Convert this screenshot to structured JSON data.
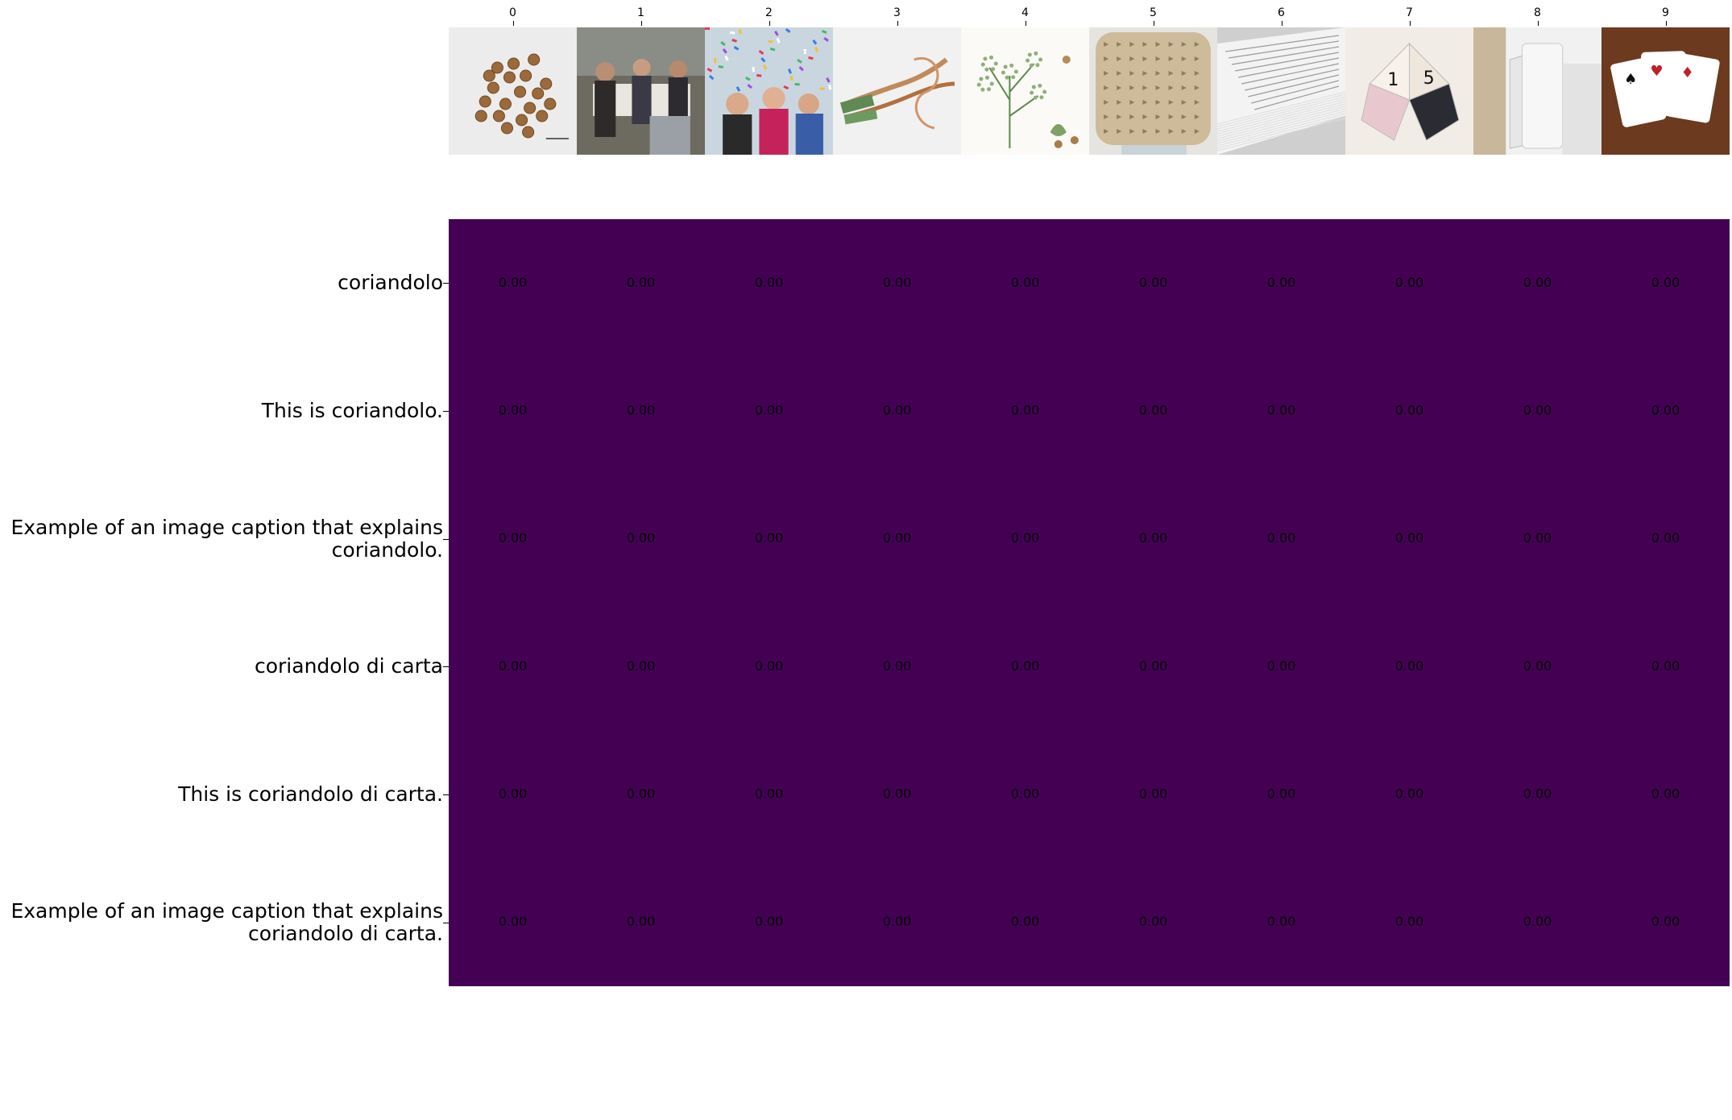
{
  "chart_data": {
    "type": "heatmap",
    "columns": [
      "0",
      "1",
      "2",
      "3",
      "4",
      "5",
      "6",
      "7",
      "8",
      "9"
    ],
    "column_images": [
      "coriander-seeds-photo-icon",
      "painting-women-with-paper-icon",
      "confetti-crowd-photo-icon",
      "white-roots-photo-icon",
      "coriander-plant-botanical-illustration-icon",
      "cuneiform-tablet-photo-icon",
      "paper-stack-photo-icon",
      "paper-fortune-teller-icon",
      "paper-roll-photo-icon",
      "playing-cards-photo-icon"
    ],
    "rows": [
      "coriandolo",
      "This is coriandolo.",
      "Example of an image caption that explains\ncoriandolo.",
      "coriandolo di carta",
      "This is coriandolo di carta.",
      "Example of an image caption that explains\ncoriandolo di carta."
    ],
    "values": [
      [
        0,
        0,
        0,
        0,
        0,
        0,
        0,
        0,
        0,
        0
      ],
      [
        0,
        0,
        0,
        0,
        0,
        0,
        0,
        0,
        0,
        0
      ],
      [
        0,
        0,
        0,
        0,
        0,
        0,
        0,
        0,
        0,
        0
      ],
      [
        0,
        0,
        0,
        0,
        0,
        0,
        0,
        0,
        0,
        0
      ],
      [
        0,
        0,
        0,
        0,
        0,
        0,
        0,
        0,
        0,
        0
      ],
      [
        0,
        0,
        0,
        0,
        0,
        0,
        0,
        0,
        0,
        0
      ]
    ],
    "cell_labels": [
      [
        "0.00",
        "0.00",
        "0.00",
        "0.00",
        "0.00",
        "0.00",
        "0.00",
        "0.00",
        "0.00",
        "0.00"
      ],
      [
        "0.00",
        "0.00",
        "0.00",
        "0.00",
        "0.00",
        "0.00",
        "0.00",
        "0.00",
        "0.00",
        "0.00"
      ],
      [
        "0.00",
        "0.00",
        "0.00",
        "0.00",
        "0.00",
        "0.00",
        "0.00",
        "0.00",
        "0.00",
        "0.00"
      ],
      [
        "0.00",
        "0.00",
        "0.00",
        "0.00",
        "0.00",
        "0.00",
        "0.00",
        "0.00",
        "0.00",
        "0.00"
      ],
      [
        "0.00",
        "0.00",
        "0.00",
        "0.00",
        "0.00",
        "0.00",
        "0.00",
        "0.00",
        "0.00",
        "0.00"
      ],
      [
        "0.00",
        "0.00",
        "0.00",
        "0.00",
        "0.00",
        "0.00",
        "0.00",
        "0.00",
        "0.00",
        "0.00"
      ]
    ],
    "colormap": "viridis",
    "cell_color": "#440154",
    "grid": false,
    "legend": "none"
  }
}
